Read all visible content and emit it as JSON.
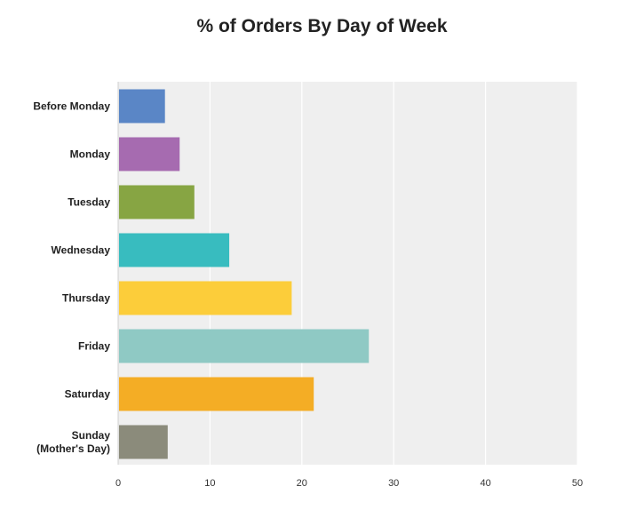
{
  "chart_data": {
    "type": "bar",
    "orientation": "horizontal",
    "title": "% of Orders By Day of Week",
    "xlabel": "",
    "ylabel": "",
    "xlim": [
      0,
      50
    ],
    "xticks": [
      "0",
      "10",
      "20",
      "30",
      "40",
      "50"
    ],
    "grid": true,
    "legend": "none",
    "categories": [
      {
        "label": [
          "Before Monday"
        ],
        "value": 5.0,
        "color": "#5a86c6"
      },
      {
        "label": [
          "Monday"
        ],
        "value": 6.6,
        "color": "#a66bb0"
      },
      {
        "label": [
          "Tuesday"
        ],
        "value": 8.2,
        "color": "#87a543"
      },
      {
        "label": [
          "Wednesday"
        ],
        "value": 12.0,
        "color": "#38bcbf"
      },
      {
        "label": [
          "Thursday"
        ],
        "value": 18.8,
        "color": "#fccd3a"
      },
      {
        "label": [
          "Friday"
        ],
        "value": 27.2,
        "color": "#8fc9c4"
      },
      {
        "label": [
          "Saturday"
        ],
        "value": 21.2,
        "color": "#f4ad25"
      },
      {
        "label": [
          "Sunday",
          "(Mother's Day)"
        ],
        "value": 5.3,
        "color": "#8b8b7b"
      }
    ]
  }
}
